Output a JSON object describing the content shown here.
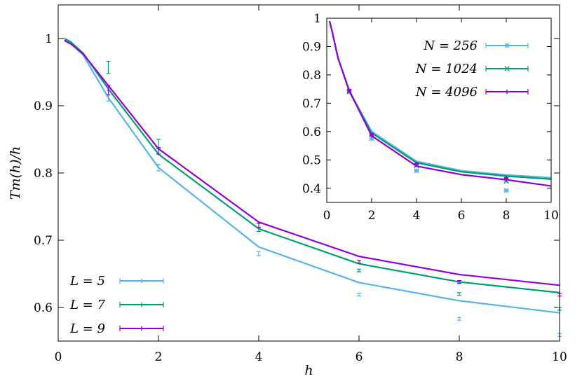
{
  "chart_data": [
    {
      "type": "line",
      "name": "main",
      "xlabel": "h",
      "ylabel": "Tm(h)/h",
      "xlim": [
        0,
        10
      ],
      "ylim": [
        0.55,
        1.05
      ],
      "xticks": [
        0,
        2,
        4,
        6,
        8,
        10
      ],
      "yticks": [
        0.6,
        0.7,
        0.8,
        0.9,
        1
      ],
      "legend_position": "bottom-left",
      "series": [
        {
          "name": "L = 5",
          "legend_label": "L = 5",
          "color": "#56b4e9",
          "line": {
            "x": [
              0.125,
              0.25,
              0.5,
              1,
              2,
              4,
              6,
              8,
              10
            ],
            "y": [
              0.998,
              0.993,
              0.975,
              0.912,
              0.808,
              0.69,
              0.637,
              0.61,
              0.592
            ]
          },
          "points": [
            {
              "x": 1,
              "y": 0.915,
              "err": 0.008
            },
            {
              "x": 2,
              "y": 0.808,
              "err": 0.005
            },
            {
              "x": 4,
              "y": 0.68,
              "err": 0.003
            },
            {
              "x": 6,
              "y": 0.619,
              "err": 0.002
            },
            {
              "x": 8,
              "y": 0.583,
              "err": 0.002
            },
            {
              "x": 10,
              "y": 0.559,
              "err": 0.002
            }
          ]
        },
        {
          "name": "L = 7",
          "legend_label": "L = 7",
          "color": "#009e73",
          "line": {
            "x": [
              0.125,
              0.25,
              0.5,
              1,
              2,
              4,
              6,
              8,
              10
            ],
            "y": [
              1.0,
              0.995,
              0.978,
              0.925,
              0.828,
              0.717,
              0.665,
              0.638,
              0.622
            ]
          },
          "points": [
            {
              "x": 1,
              "y": 0.957,
              "err": 0.009
            },
            {
              "x": 2,
              "y": 0.843,
              "err": 0.007
            },
            {
              "x": 4,
              "y": 0.716,
              "err": 0.003
            },
            {
              "x": 6,
              "y": 0.655,
              "err": 0.002
            },
            {
              "x": 8,
              "y": 0.62,
              "err": 0.002
            },
            {
              "x": 10,
              "y": 0.598,
              "err": 0.002
            }
          ]
        },
        {
          "name": "L = 9",
          "legend_label": "L = 9",
          "color": "#9400d3",
          "line": {
            "x": [
              0.125,
              0.25,
              0.5,
              1,
              2,
              4,
              6,
              8,
              10
            ],
            "y": [
              0.997,
              0.992,
              0.977,
              0.93,
              0.836,
              0.727,
              0.676,
              0.649,
              0.633
            ]
          },
          "points": [
            {
              "x": 1,
              "y": 0.923,
              "err": 0.007
            },
            {
              "x": 2,
              "y": 0.833,
              "err": 0.005
            },
            {
              "x": 4,
              "y": 0.722,
              "err": 0.003
            },
            {
              "x": 6,
              "y": 0.668,
              "err": 0.002
            },
            {
              "x": 8,
              "y": 0.638,
              "err": 0.002
            },
            {
              "x": 10,
              "y": 0.619,
              "err": 0.002
            }
          ]
        }
      ]
    },
    {
      "type": "line",
      "name": "inset",
      "xlim": [
        0,
        10
      ],
      "ylim": [
        0.35,
        1.0
      ],
      "xticks": [
        0,
        2,
        4,
        6,
        8,
        10
      ],
      "yticks": [
        0.4,
        0.5,
        0.6,
        0.7,
        0.8,
        0.9,
        1
      ],
      "legend_position": "top-right",
      "series": [
        {
          "name": "N = 256",
          "legend_label": "N = 256",
          "color": "#56b4e9",
          "line": {
            "x": [
              0.125,
              0.25,
              0.5,
              1,
              2,
              4,
              6,
              8,
              10
            ],
            "y": [
              0.99,
              0.95,
              0.86,
              0.745,
              0.6,
              0.495,
              0.462,
              0.447,
              0.437
            ]
          },
          "points": [
            {
              "x": 1,
              "y": 0.74,
              "err": 0.005
            },
            {
              "x": 2,
              "y": 0.575,
              "err": 0.004
            },
            {
              "x": 4,
              "y": 0.462,
              "err": 0.003
            },
            {
              "x": 8,
              "y": 0.392,
              "err": 0.003
            }
          ]
        },
        {
          "name": "N = 1024",
          "legend_label": "N = 1024",
          "color": "#009e73",
          "line": {
            "x": [
              0.125,
              0.25,
              0.5,
              1,
              2,
              4,
              6,
              8,
              10
            ],
            "y": [
              0.99,
              0.95,
              0.86,
              0.742,
              0.595,
              0.49,
              0.458,
              0.443,
              0.432
            ]
          },
          "points": [
            {
              "x": 1,
              "y": 0.742,
              "err": 0.004
            },
            {
              "x": 2,
              "y": 0.59,
              "err": 0.004
            },
            {
              "x": 4,
              "y": 0.48,
              "err": 0.003
            },
            {
              "x": 8,
              "y": 0.425,
              "err": 0.003
            }
          ]
        },
        {
          "name": "N = 4096",
          "legend_label": "N = 4096",
          "color": "#9400d3",
          "line": {
            "x": [
              0.125,
              0.25,
              0.5,
              1,
              2,
              4,
              6,
              8,
              10
            ],
            "y": [
              0.99,
              0.95,
              0.86,
              0.745,
              0.585,
              0.478,
              0.448,
              0.43,
              0.408
            ]
          },
          "points": [
            {
              "x": 1,
              "y": 0.745,
              "err": 0.004
            },
            {
              "x": 2,
              "y": 0.588,
              "err": 0.004
            },
            {
              "x": 4,
              "y": 0.485,
              "err": 0.003
            },
            {
              "x": 8,
              "y": 0.435,
              "err": 0.003
            }
          ]
        }
      ]
    }
  ]
}
